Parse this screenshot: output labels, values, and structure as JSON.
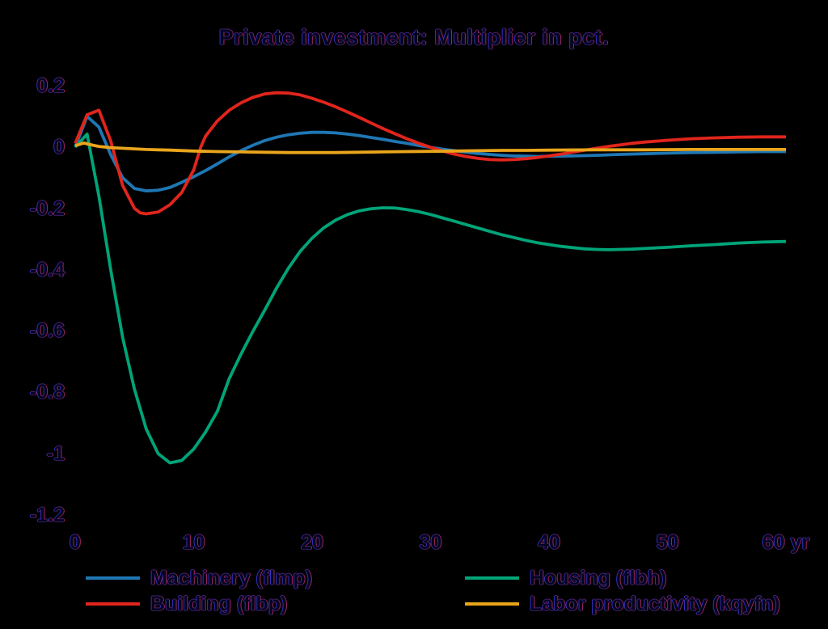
{
  "colors": {
    "background": "#000000",
    "text": "#05051d",
    "machinery": "#1f77b4",
    "building": "#e1251c",
    "housing": "#00a478",
    "labor_productivity": "#e9a51c"
  },
  "chart_data": {
    "type": "line",
    "title": "Private investment: Multiplier in pct.",
    "xlabel": "yr",
    "ylabel": "",
    "xlim": [
      0,
      60
    ],
    "ylim": [
      -1.2,
      0.2
    ],
    "grid": false,
    "legend_position": "bottom",
    "xticks": [
      {
        "value": 0,
        "label": "0"
      },
      {
        "value": 10,
        "label": "10"
      },
      {
        "value": 20,
        "label": "20"
      },
      {
        "value": 30,
        "label": "30"
      },
      {
        "value": 40,
        "label": "40"
      },
      {
        "value": 50,
        "label": "50"
      },
      {
        "value": 60,
        "label": "60 yr"
      }
    ],
    "yticks": [
      {
        "value": 0.2,
        "label": "0.2"
      },
      {
        "value": 0,
        "label": "0"
      },
      {
        "value": -0.2,
        "label": "-0.2"
      },
      {
        "value": -0.4,
        "label": "-0.4"
      },
      {
        "value": -0.6,
        "label": "-0.6"
      },
      {
        "value": -0.8,
        "label": "-0.8"
      },
      {
        "value": -1,
        "label": "-1"
      },
      {
        "value": -1.2,
        "label": "-1.2"
      }
    ],
    "series": [
      {
        "id": "machinery",
        "name": "Machinery (flmp)",
        "color": "#1f77b4",
        "points": [
          [
            0,
            0
          ],
          [
            1,
            0.1
          ],
          [
            2,
            0.065
          ],
          [
            3,
            -0.025
          ],
          [
            4,
            -0.1
          ],
          [
            5,
            -0.135
          ],
          [
            6,
            -0.143
          ],
          [
            7,
            -0.141
          ],
          [
            8,
            -0.132
          ],
          [
            9,
            -0.115
          ],
          [
            10,
            -0.097
          ],
          [
            11,
            -0.077
          ],
          [
            12,
            -0.055
          ],
          [
            13,
            -0.032
          ],
          [
            14,
            -0.012
          ],
          [
            15,
            0.006
          ],
          [
            16,
            0.021
          ],
          [
            17,
            0.032
          ],
          [
            18,
            0.04
          ],
          [
            19,
            0.045
          ],
          [
            20,
            0.048
          ],
          [
            21,
            0.048
          ],
          [
            22,
            0.046
          ],
          [
            23,
            0.042
          ],
          [
            24,
            0.037
          ],
          [
            25,
            0.031
          ],
          [
            26,
            0.025
          ],
          [
            27,
            0.018
          ],
          [
            28,
            0.012
          ],
          [
            29,
            0.005
          ],
          [
            30,
            -0.001
          ],
          [
            31,
            -0.007
          ],
          [
            32,
            -0.012
          ],
          [
            33,
            -0.017
          ],
          [
            34,
            -0.021
          ],
          [
            35,
            -0.024
          ],
          [
            36,
            -0.027
          ],
          [
            37,
            -0.029
          ],
          [
            38,
            -0.03
          ],
          [
            39,
            -0.031
          ],
          [
            40,
            -0.03
          ],
          [
            42,
            -0.029
          ],
          [
            44,
            -0.027
          ],
          [
            46,
            -0.024
          ],
          [
            48,
            -0.022
          ],
          [
            50,
            -0.02
          ],
          [
            52,
            -0.018
          ],
          [
            54,
            -0.017
          ],
          [
            56,
            -0.016
          ],
          [
            58,
            -0.015
          ],
          [
            60,
            -0.015
          ]
        ]
      },
      {
        "id": "building",
        "name": "Building (flbp)",
        "color": "#e1251c",
        "points": [
          [
            0,
            0.012
          ],
          [
            1,
            0.105
          ],
          [
            2,
            0.12
          ],
          [
            3,
            0.02
          ],
          [
            4,
            -0.125
          ],
          [
            5,
            -0.2
          ],
          [
            5.5,
            -0.215
          ],
          [
            6,
            -0.218
          ],
          [
            7,
            -0.212
          ],
          [
            8,
            -0.188
          ],
          [
            9,
            -0.148
          ],
          [
            10,
            -0.075
          ],
          [
            10.6,
            0
          ],
          [
            11,
            0.035
          ],
          [
            12,
            0.085
          ],
          [
            13,
            0.12
          ],
          [
            14,
            0.144
          ],
          [
            15,
            0.162
          ],
          [
            16,
            0.173
          ],
          [
            17,
            0.177
          ],
          [
            18,
            0.176
          ],
          [
            19,
            0.17
          ],
          [
            20,
            0.159
          ],
          [
            21,
            0.146
          ],
          [
            22,
            0.131
          ],
          [
            23,
            0.114
          ],
          [
            24,
            0.096
          ],
          [
            25,
            0.078
          ],
          [
            26,
            0.06
          ],
          [
            27,
            0.043
          ],
          [
            28,
            0.027
          ],
          [
            29,
            0.012
          ],
          [
            30,
            -0.001
          ],
          [
            31,
            -0.013
          ],
          [
            32,
            -0.023
          ],
          [
            33,
            -0.031
          ],
          [
            34,
            -0.037
          ],
          [
            35,
            -0.041
          ],
          [
            36,
            -0.042
          ],
          [
            37,
            -0.041
          ],
          [
            38,
            -0.038
          ],
          [
            39,
            -0.034
          ],
          [
            40,
            -0.029
          ],
          [
            41,
            -0.023
          ],
          [
            42,
            -0.017
          ],
          [
            43,
            -0.01
          ],
          [
            44,
            -0.004
          ],
          [
            45,
            0.002
          ],
          [
            46,
            0.007
          ],
          [
            47,
            0.012
          ],
          [
            48,
            0.016
          ],
          [
            50,
            0.022
          ],
          [
            52,
            0.027
          ],
          [
            54,
            0.03
          ],
          [
            56,
            0.032
          ],
          [
            58,
            0.033
          ],
          [
            60,
            0.033
          ]
        ]
      },
      {
        "id": "housing",
        "name": "Housing (flbh)",
        "color": "#00a478",
        "points": [
          [
            0,
            0
          ],
          [
            1,
            0.042
          ],
          [
            2,
            -0.16
          ],
          [
            3,
            -0.4
          ],
          [
            4,
            -0.62
          ],
          [
            5,
            -0.79
          ],
          [
            6,
            -0.92
          ],
          [
            7,
            -1.0
          ],
          [
            8,
            -1.03
          ],
          [
            9,
            -1.022
          ],
          [
            10,
            -0.985
          ],
          [
            11,
            -0.93
          ],
          [
            12,
            -0.862
          ],
          [
            13,
            -0.755
          ],
          [
            14,
            -0.675
          ],
          [
            15,
            -0.601
          ],
          [
            16,
            -0.532
          ],
          [
            17,
            -0.46
          ],
          [
            18,
            -0.395
          ],
          [
            19,
            -0.34
          ],
          [
            20,
            -0.297
          ],
          [
            21,
            -0.263
          ],
          [
            22,
            -0.238
          ],
          [
            23,
            -0.22
          ],
          [
            24,
            -0.208
          ],
          [
            25,
            -0.201
          ],
          [
            26,
            -0.198
          ],
          [
            27,
            -0.199
          ],
          [
            28,
            -0.204
          ],
          [
            29,
            -0.211
          ],
          [
            30,
            -0.22
          ],
          [
            31,
            -0.231
          ],
          [
            32,
            -0.242
          ],
          [
            33,
            -0.253
          ],
          [
            34,
            -0.264
          ],
          [
            35,
            -0.275
          ],
          [
            36,
            -0.286
          ],
          [
            37,
            -0.295
          ],
          [
            38,
            -0.304
          ],
          [
            39,
            -0.312
          ],
          [
            40,
            -0.318
          ],
          [
            41,
            -0.324
          ],
          [
            42,
            -0.328
          ],
          [
            43,
            -0.332
          ],
          [
            44,
            -0.334
          ],
          [
            45,
            -0.335
          ],
          [
            46,
            -0.334
          ],
          [
            47,
            -0.333
          ],
          [
            48,
            -0.331
          ],
          [
            50,
            -0.327
          ],
          [
            52,
            -0.322
          ],
          [
            54,
            -0.318
          ],
          [
            56,
            -0.313
          ],
          [
            58,
            -0.31
          ],
          [
            60,
            -0.308
          ]
        ]
      },
      {
        "id": "labor-productivity",
        "name": "Labor productivity (kqyfn)",
        "color": "#e9a51c",
        "points": [
          [
            0,
            0.004
          ],
          [
            0.7,
            0.013
          ],
          [
            1.5,
            0.006
          ],
          [
            2,
            0.002
          ],
          [
            3,
            -0.002
          ],
          [
            4,
            -0.004
          ],
          [
            5,
            -0.006
          ],
          [
            6,
            -0.008
          ],
          [
            7,
            -0.009
          ],
          [
            8,
            -0.01
          ],
          [
            10,
            -0.013
          ],
          [
            12,
            -0.015
          ],
          [
            14,
            -0.016
          ],
          [
            16,
            -0.017
          ],
          [
            18,
            -0.018
          ],
          [
            20,
            -0.018
          ],
          [
            22,
            -0.018
          ],
          [
            24,
            -0.017
          ],
          [
            26,
            -0.016
          ],
          [
            28,
            -0.015
          ],
          [
            30,
            -0.014
          ],
          [
            32,
            -0.013
          ],
          [
            34,
            -0.012
          ],
          [
            36,
            -0.011
          ],
          [
            38,
            -0.011
          ],
          [
            40,
            -0.01
          ],
          [
            44,
            -0.009
          ],
          [
            48,
            -0.009
          ],
          [
            52,
            -0.008
          ],
          [
            56,
            -0.008
          ],
          [
            60,
            -0.008
          ]
        ]
      }
    ]
  }
}
